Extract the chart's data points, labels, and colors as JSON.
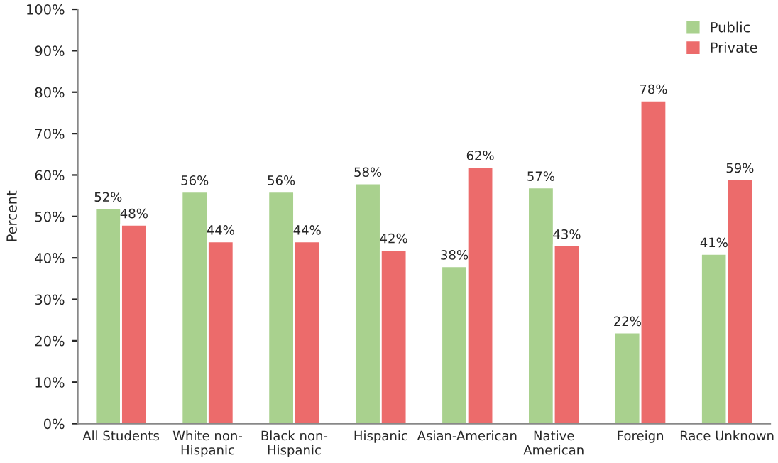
{
  "chart_data": {
    "type": "bar",
    "ylabel": "Percent",
    "categories": [
      "All Students",
      "White non-\nHispanic",
      "Black non-\nHispanic",
      "Hispanic",
      "Asian-American",
      "Native\nAmerican",
      "Foreign",
      "Race Unknown"
    ],
    "series": [
      {
        "name": "Public",
        "color": "#a9d18e",
        "values": [
          52,
          56,
          56,
          58,
          38,
          57,
          22,
          41
        ],
        "value_labels": [
          "52%",
          "56%",
          "56%",
          "58%",
          "38%",
          "57%",
          "22%",
          "41%"
        ]
      },
      {
        "name": "Private",
        "color": "#ec6b6b",
        "values": [
          48,
          44,
          44,
          42,
          62,
          43,
          78,
          59
        ],
        "value_labels": [
          "48%",
          "44%",
          "44%",
          "42%",
          "62%",
          "43%",
          "78%",
          "59%"
        ]
      }
    ],
    "ylim": [
      0,
      100
    ],
    "yticks": [
      {
        "value": 0,
        "label": "0%"
      },
      {
        "value": 10,
        "label": "10%"
      },
      {
        "value": 20,
        "label": "20%"
      },
      {
        "value": 30,
        "label": "30%"
      },
      {
        "value": 40,
        "label": "40%"
      },
      {
        "value": 50,
        "label": "50%"
      },
      {
        "value": 60,
        "label": "60%"
      },
      {
        "value": 70,
        "label": "70%"
      },
      {
        "value": 80,
        "label": "80%"
      },
      {
        "value": 90,
        "label": "90%"
      },
      {
        "value": 100,
        "label": "100%"
      }
    ],
    "grid": false,
    "legend": "top right"
  }
}
